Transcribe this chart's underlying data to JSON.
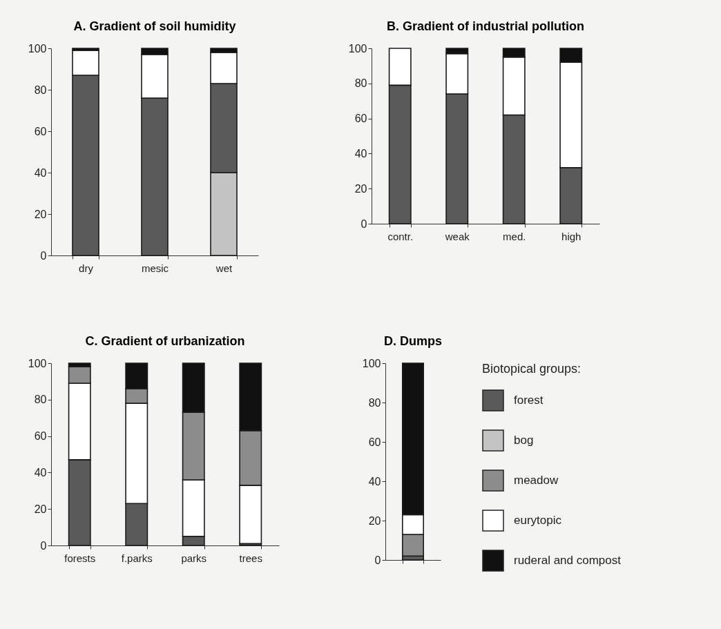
{
  "chart_data": [
    {
      "type": "bar",
      "title": "A. Gradient of soil humidity",
      "stacked": true,
      "categories": [
        "dry",
        "mesic",
        "wet"
      ],
      "ylim": [
        0,
        100
      ],
      "yticks": [
        0,
        20,
        40,
        60,
        80,
        100
      ],
      "grid": false,
      "series": [
        {
          "color": "#c4c4c4",
          "values": [
            null,
            null,
            40
          ]
        },
        {
          "color": "#5a5a5a",
          "values": [
            87,
            76,
            43
          ]
        },
        {
          "color": "#ffffff",
          "values": [
            12,
            21,
            15
          ]
        },
        {
          "color": "#111111",
          "values": [
            1,
            3,
            2
          ]
        }
      ]
    },
    {
      "type": "bar",
      "title": "B. Gradient of industrial pollution",
      "stacked": true,
      "categories": [
        "contr.",
        "weak",
        "med.",
        "high"
      ],
      "ylim": [
        0,
        100
      ],
      "yticks": [
        0,
        20,
        40,
        60,
        80,
        100
      ],
      "grid": false,
      "series": [
        {
          "color": "#5a5a5a",
          "values": [
            79,
            74,
            62,
            32
          ]
        },
        {
          "color": "#ffffff",
          "values": [
            21,
            23,
            33,
            60
          ]
        },
        {
          "color": "#111111",
          "values": [
            null,
            3,
            5,
            8
          ]
        }
      ]
    },
    {
      "type": "bar",
      "title": "C. Gradient of urbanization",
      "stacked": true,
      "categories": [
        "forests",
        "f.parks",
        "parks",
        "trees"
      ],
      "ylim": [
        0,
        100
      ],
      "yticks": [
        0,
        20,
        40,
        60,
        80,
        100
      ],
      "grid": false,
      "series": [
        {
          "color": "#5a5a5a",
          "values": [
            47,
            23,
            5,
            1
          ]
        },
        {
          "color": "#ffffff",
          "values": [
            42,
            55,
            31,
            32
          ]
        },
        {
          "color": "#8c8c8c",
          "values": [
            9,
            8,
            37,
            30
          ]
        },
        {
          "color": "#111111",
          "values": [
            2,
            14,
            27,
            37
          ]
        }
      ]
    },
    {
      "type": "bar",
      "title": "D. Dumps",
      "stacked": true,
      "categories": [
        null
      ],
      "ylim": [
        0,
        100
      ],
      "yticks": [
        0,
        20,
        40,
        60,
        80,
        100
      ],
      "grid": false,
      "legend": "right",
      "legend_title": "Biotopical groups:",
      "series": [
        {
          "name": "forest",
          "color": "#5a5a5a",
          "values": [
            2
          ]
        },
        {
          "name": "bog",
          "color": "#c4c4c4",
          "values": [
            null
          ]
        },
        {
          "name": "meadow",
          "color": "#8c8c8c",
          "values": [
            11
          ]
        },
        {
          "name": "eurytopic",
          "color": "#ffffff",
          "values": [
            10
          ]
        },
        {
          "name": "ruderal and compost",
          "color": "#111111",
          "values": [
            77
          ]
        }
      ]
    }
  ]
}
